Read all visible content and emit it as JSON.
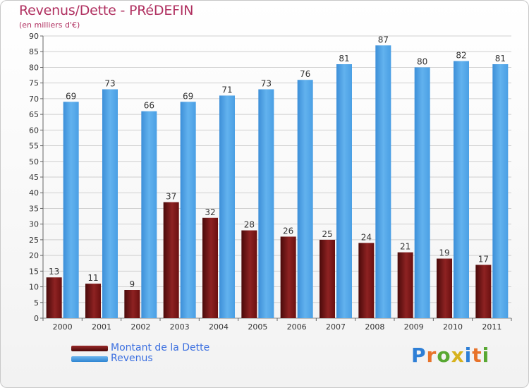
{
  "title": "Revenus/Dette - PRéDEFIN",
  "subtitle": "(en milliers d'€)",
  "brand": "Proxiti",
  "colors": {
    "title": "#b03060",
    "dette": "#7a1515",
    "revenus": "#4a9fe4",
    "grid": "#d0d0d0",
    "legend_text": "#3b6fe0"
  },
  "chart_data": {
    "type": "bar",
    "title": "Revenus/Dette - PRéDEFIN",
    "ylabel": "(en milliers d'€)",
    "xlabel": "",
    "ylim": [
      0,
      90
    ],
    "ytick_step": 5,
    "grid": true,
    "legend_position": "bottom-left",
    "categories": [
      "2000",
      "2001",
      "2002",
      "2003",
      "2004",
      "2005",
      "2006",
      "2007",
      "2008",
      "2009",
      "2010",
      "2011"
    ],
    "series": [
      {
        "name": "Montant de la Dette",
        "values": [
          13,
          11,
          9,
          37,
          32,
          28,
          26,
          25,
          24,
          21,
          19,
          17
        ]
      },
      {
        "name": "Revenus",
        "values": [
          69,
          73,
          66,
          69,
          71,
          73,
          76,
          81,
          87,
          80,
          82,
          81
        ]
      }
    ]
  }
}
